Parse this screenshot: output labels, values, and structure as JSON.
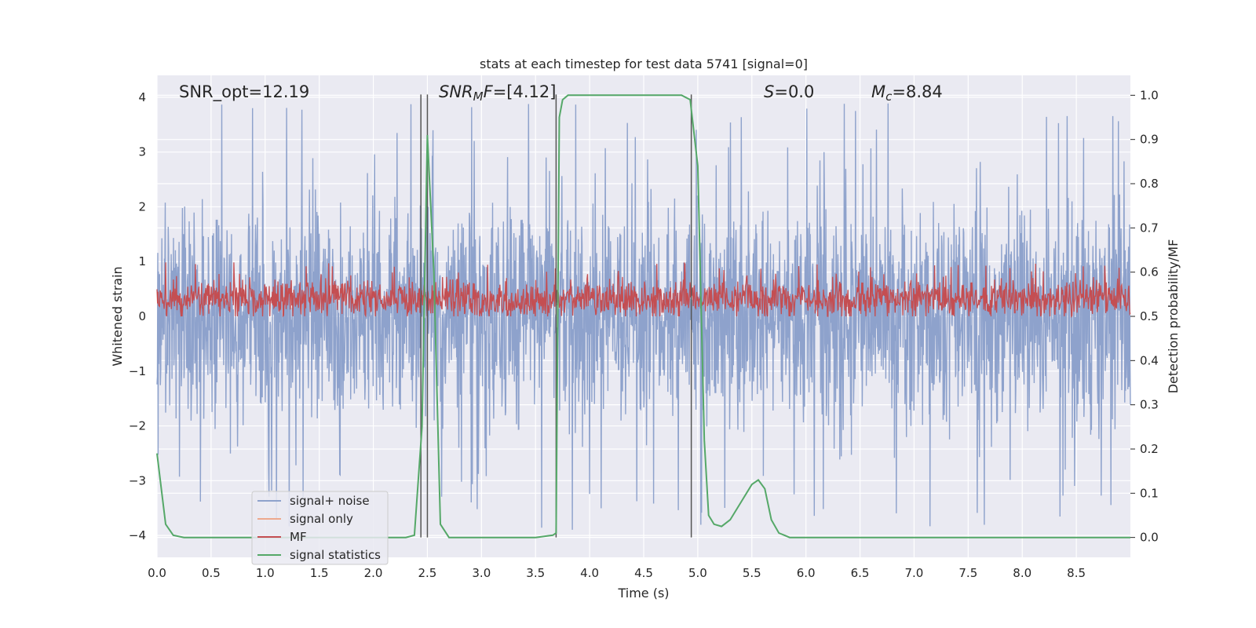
{
  "chart_data": {
    "type": "line",
    "title": "stats at each timestep for test data 5741 [signal=0]",
    "xlabel": "Time (s)",
    "ylabel_left": "Whitened strain",
    "ylabel_right": "Detection probability/MF",
    "xlim": [
      0.0,
      9.0
    ],
    "ylim_left": [
      -4.4,
      4.4
    ],
    "ylim_right": [
      -0.045,
      1.045
    ],
    "grid": true,
    "x_ticks": [
      0.0,
      0.5,
      1.0,
      1.5,
      2.0,
      2.5,
      3.0,
      3.5,
      4.0,
      4.5,
      5.0,
      5.5,
      6.0,
      6.5,
      7.0,
      7.5,
      8.0,
      8.5
    ],
    "x_tick_labels": [
      "0.0",
      "0.5",
      "1.0",
      "1.5",
      "2.0",
      "2.5",
      "3.0",
      "3.5",
      "4.0",
      "4.5",
      "5.0",
      "5.5",
      "6.0",
      "6.5",
      "7.0",
      "7.5",
      "8.0",
      "8.5"
    ],
    "y_left_ticks": [
      4,
      3,
      2,
      1,
      0,
      -1,
      -2,
      -3,
      -4
    ],
    "y_left_tick_labels": [
      "4",
      "3",
      "2",
      "1",
      "0",
      "−1",
      "−2",
      "−3",
      "−4"
    ],
    "y_right_ticks": [
      1.0,
      0.9,
      0.8,
      0.7,
      0.6,
      0.5,
      0.4,
      0.3,
      0.2,
      0.1,
      0.0
    ],
    "y_right_tick_labels": [
      "1.0",
      "0.9",
      "0.8",
      "0.7",
      "0.6",
      "0.5",
      "0.4",
      "0.3",
      "0.2",
      "0.1",
      "0.0"
    ],
    "annotations": {
      "snr_opt": "SNR_opt=12.19",
      "snr_mf_main": "SNR",
      "snr_mf_sub": "M",
      "snr_mf_rest": "F=[4.12]",
      "s_label": "S",
      "s_value": "=0.0",
      "mc_main": "M",
      "mc_sub": "c",
      "mc_value": "=8.84"
    },
    "series": [
      {
        "name": "signal+ noise",
        "color": "#8ea2cc",
        "axis": "left",
        "description": "dense whitened noise trace, roughly -2.5 to 2.5 with spikes to about ±4"
      },
      {
        "name": "signal only",
        "color": "#eda88d",
        "axis": "left",
        "values": []
      },
      {
        "name": "MF",
        "color": "#c44e52",
        "axis": "left",
        "description": "matched-filter trace fluctuating between about 0 and 0.9"
      },
      {
        "name": "signal statistics",
        "color": "#55a868",
        "axis": "right",
        "x": [
          0.0,
          0.08,
          0.15,
          0.25,
          0.5,
          1.0,
          1.5,
          2.0,
          2.2,
          2.3,
          2.38,
          2.45,
          2.5,
          2.56,
          2.62,
          2.7,
          3.0,
          3.5,
          3.66,
          3.69,
          3.72,
          3.75,
          3.8,
          4.0,
          4.5,
          4.85,
          4.93,
          5.0,
          5.06,
          5.1,
          5.15,
          5.22,
          5.3,
          5.4,
          5.5,
          5.56,
          5.62,
          5.68,
          5.75,
          5.8,
          5.85,
          5.95,
          6.5,
          7.0,
          8.0,
          9.0
        ],
        "y": [
          0.19,
          0.03,
          0.005,
          0.0,
          0.0,
          0.0,
          0.0,
          0.0,
          0.0,
          0.0,
          0.005,
          0.25,
          0.91,
          0.6,
          0.03,
          0.0,
          0.0,
          0.0,
          0.005,
          0.01,
          0.95,
          0.99,
          1.0,
          1.0,
          1.0,
          1.0,
          0.99,
          0.84,
          0.22,
          0.05,
          0.03,
          0.025,
          0.04,
          0.08,
          0.12,
          0.13,
          0.11,
          0.04,
          0.01,
          0.005,
          0.0,
          0.0,
          0.0,
          0.0,
          0.0,
          0.0
        ]
      }
    ],
    "vertical_lines_x": [
      2.44,
      2.5,
      3.69,
      4.94
    ],
    "legend": {
      "location": "lower-left",
      "entries": [
        "signal+ noise",
        "signal only",
        "MF",
        "signal statistics"
      ]
    },
    "colors": {
      "plot_background": "#eaeaf2",
      "grid": "#ffffff",
      "vertical_lines": "#555555",
      "text": "#262626"
    }
  }
}
